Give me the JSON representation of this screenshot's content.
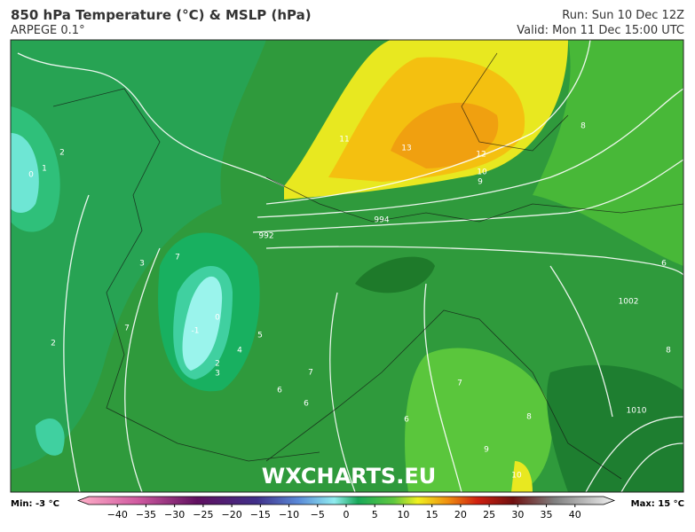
{
  "header": {
    "title": "850 hPa Temperature (°C) & MSLP (hPa)",
    "model": "ARPEGE 0.1°",
    "run": "Run: Sun 10 Dec 12Z",
    "valid": "Valid: Mon 11 Dec 15:00 UTC"
  },
  "map": {
    "watermark": "WXCHARTS.EU",
    "labels": [
      "1",
      "2",
      "0",
      "7",
      "3",
      "0",
      "-1",
      "2",
      "3",
      "4",
      "5",
      "6",
      "7",
      "6",
      "6",
      "7",
      "8",
      "9",
      "10",
      "11",
      "13",
      "12",
      "10",
      "9",
      "8",
      "6",
      "8",
      "2",
      "7",
      "1002",
      "1010",
      "992",
      "994"
    ]
  },
  "colorbar": {
    "min_label": "Min: -3 °C",
    "max_label": "Max: 15 °C",
    "lim": [
      -45,
      45
    ],
    "ticks": [
      {
        "value": -40,
        "label": "−40"
      },
      {
        "value": -35,
        "label": "−35"
      },
      {
        "value": -30,
        "label": "−30"
      },
      {
        "value": -25,
        "label": "−25"
      },
      {
        "value": -20,
        "label": "−20"
      },
      {
        "value": -15,
        "label": "−15"
      },
      {
        "value": -10,
        "label": "−10"
      },
      {
        "value": -5,
        "label": "−5"
      },
      0,
      5,
      10,
      15,
      20,
      25,
      30,
      35,
      40
    ],
    "stops": [
      {
        "value": -45,
        "color": "#ffb0c8"
      },
      {
        "value": -35,
        "color": "#d05aa0"
      },
      {
        "value": -25,
        "color": "#601060"
      },
      {
        "value": -15,
        "color": "#40308a"
      },
      {
        "value": -8,
        "color": "#5a8ad8"
      },
      {
        "value": -2,
        "color": "#90ecf0"
      },
      {
        "value": 2,
        "color": "#18a858"
      },
      {
        "value": 8,
        "color": "#60c840"
      },
      {
        "value": 12,
        "color": "#f0f020"
      },
      {
        "value": 17,
        "color": "#f09010"
      },
      {
        "value": 22,
        "color": "#d02010"
      },
      {
        "value": 28,
        "color": "#701010"
      },
      {
        "value": 35,
        "color": "#808080"
      },
      {
        "value": 45,
        "color": "#f0f0f0"
      }
    ]
  }
}
